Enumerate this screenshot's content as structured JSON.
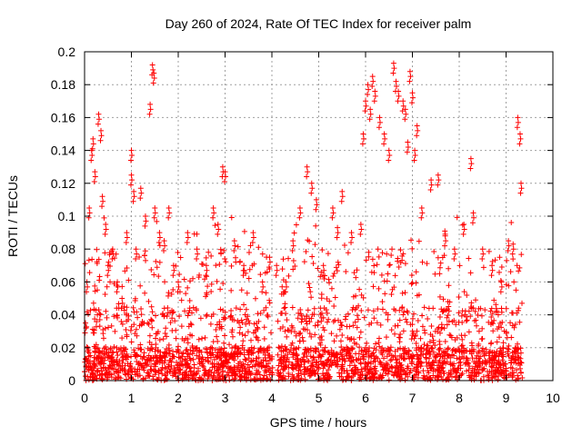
{
  "chart_data": {
    "type": "scatter",
    "title": "Day 260 of 2024, Rate Of TEC Index for receiver palm",
    "xlabel": "GPS time / hours",
    "ylabel": "ROTI / TECUs",
    "xlim": [
      0,
      10
    ],
    "ylim": [
      0,
      0.2
    ],
    "xticks": [
      "0",
      "1",
      "2",
      "3",
      "4",
      "5",
      "6",
      "7",
      "8",
      "9",
      "10"
    ],
    "yticks": [
      "0",
      "0.02",
      "0.04",
      "0.06",
      "0.08",
      "0.1",
      "0.12",
      "0.14",
      "0.16",
      "0.18",
      "0.2"
    ],
    "grid": true,
    "marker": "+",
    "color": "#ff0000",
    "data_x_range": [
      0.0,
      9.35
    ],
    "series": [
      {
        "name": "ROTI",
        "note": "dense cloud of several thousand points, mostly below 0.06; sampled outliers listed",
        "x": [
          0.02,
          0.05,
          0.1,
          0.15,
          0.18,
          0.22,
          0.3,
          0.35,
          0.38,
          0.45,
          0.5,
          0.6,
          0.7,
          0.8,
          0.9,
          1.0,
          1.0,
          1.05,
          1.1,
          1.2,
          1.3,
          1.4,
          1.45,
          1.48,
          1.5,
          1.6,
          1.7,
          1.8,
          1.9,
          2.0,
          2.2,
          2.4,
          2.6,
          2.75,
          2.85,
          2.95,
          3.0,
          3.2,
          3.4,
          3.6,
          3.8,
          3.95,
          4.1,
          4.3,
          4.45,
          4.6,
          4.75,
          4.85,
          4.95,
          5.1,
          5.3,
          5.4,
          5.5,
          5.7,
          5.9,
          5.95,
          6.0,
          6.05,
          6.1,
          6.15,
          6.2,
          6.3,
          6.4,
          6.5,
          6.6,
          6.65,
          6.7,
          6.8,
          6.85,
          6.9,
          6.95,
          7.0,
          7.05,
          7.1,
          7.2,
          7.4,
          7.55,
          7.7,
          7.9,
          8.1,
          8.25,
          8.3,
          8.5,
          8.7,
          8.9,
          9.05,
          9.15,
          9.25,
          9.3,
          9.32
        ],
        "y": [
          0.035,
          0.06,
          0.105,
          0.14,
          0.147,
          0.127,
          0.162,
          0.152,
          0.112,
          0.095,
          0.07,
          0.08,
          0.06,
          0.05,
          0.09,
          0.14,
          0.125,
          0.115,
          0.08,
          0.117,
          0.1,
          0.168,
          0.192,
          0.187,
          0.105,
          0.09,
          0.085,
          0.105,
          0.07,
          0.06,
          0.09,
          0.08,
          0.07,
          0.105,
          0.095,
          0.13,
          0.127,
          0.085,
          0.07,
          0.09,
          0.06,
          0.075,
          0.07,
          0.06,
          0.085,
          0.105,
          0.13,
          0.12,
          0.11,
          0.07,
          0.105,
          0.093,
          0.115,
          0.09,
          0.095,
          0.15,
          0.17,
          0.18,
          0.165,
          0.185,
          0.176,
          0.16,
          0.15,
          0.14,
          0.193,
          0.182,
          0.176,
          0.17,
          0.165,
          0.145,
          0.188,
          0.175,
          0.14,
          0.155,
          0.105,
          0.122,
          0.125,
          0.088,
          0.08,
          0.095,
          0.135,
          0.102,
          0.08,
          0.07,
          0.06,
          0.085,
          0.083,
          0.16,
          0.15,
          0.12
        ]
      }
    ]
  }
}
